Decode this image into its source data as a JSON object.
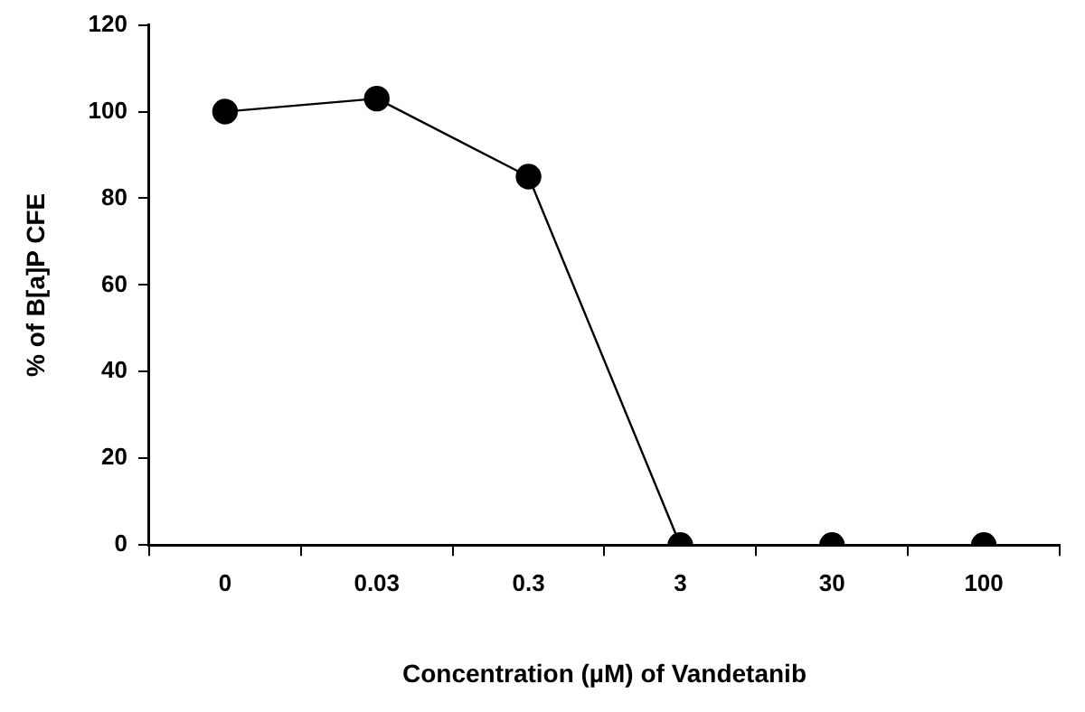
{
  "chart_data": {
    "type": "line",
    "xlabel": "Concentration (µM) of Vandetanib",
    "ylabel": "% of B[a]P CFE",
    "categories": [
      "0",
      "0.03",
      "0.3",
      "3",
      "30",
      "100"
    ],
    "series": [
      {
        "color": "#000000",
        "values": [
          100,
          103,
          85,
          0,
          0,
          0
        ]
      }
    ],
    "ylim": [
      0,
      120
    ],
    "yticks": [
      0,
      20,
      40,
      60,
      80,
      100,
      120
    ],
    "grid": false,
    "legend": false,
    "marker": "circle",
    "line_style": "solid"
  }
}
